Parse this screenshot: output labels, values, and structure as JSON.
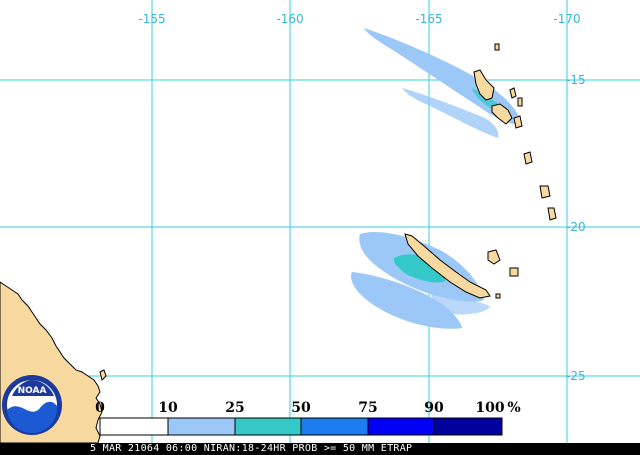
{
  "map": {
    "longitude_labels": [
      "-155",
      "-160",
      "-165",
      "-170"
    ],
    "latitude_labels": [
      "-15",
      "-20",
      "-25"
    ],
    "grid_color": "#35d0dc",
    "land_color": "#f8d9a0",
    "ocean_color": "#ffffff"
  },
  "legend": {
    "ticks": [
      "0",
      "10",
      "25",
      "50",
      "75",
      "90",
      "100",
      "%"
    ],
    "bins": [
      {
        "from": 0,
        "to": 10,
        "color": "#ffffff"
      },
      {
        "from": 10,
        "to": 25,
        "color": "#9cc8f8"
      },
      {
        "from": 25,
        "to": 50,
        "color": "#34c8c8"
      },
      {
        "from": 50,
        "to": 75,
        "color": "#1c7cf0"
      },
      {
        "from": 75,
        "to": 90,
        "color": "#0000f4"
      },
      {
        "from": 90,
        "to": 100,
        "color": "#00009c"
      }
    ]
  },
  "logo": {
    "text": "NOAA"
  },
  "footer": {
    "text": "5 MAR 21064 06:00 NIRAN:18-24HR PROB >= 50 MM ETRAP"
  }
}
